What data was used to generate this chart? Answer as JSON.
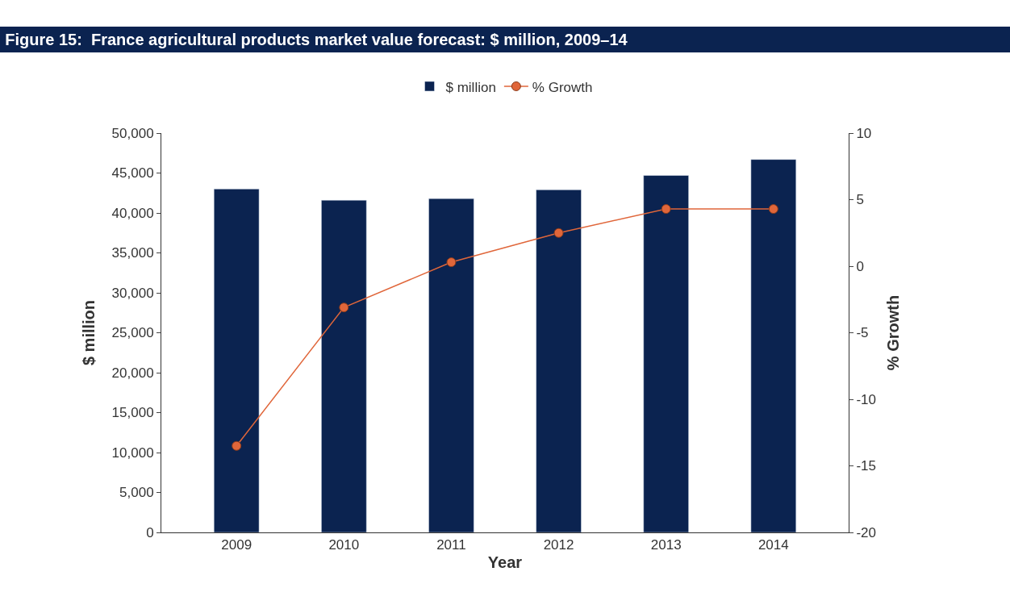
{
  "chart_data": {
    "type": "bar",
    "title": "Figure 15:  France agricultural products market value forecast: $ million, 2009–14",
    "categories": [
      "2009",
      "2010",
      "2011",
      "2012",
      "2013",
      "2014"
    ],
    "series": [
      {
        "name": "$ million",
        "color": "#0b2350",
        "values": [
          43000,
          41600,
          41800,
          42900,
          44700,
          46700
        ]
      },
      {
        "name": "% Growth",
        "type": "line",
        "axis": "y2",
        "color": "#e0663a",
        "marker": "circle",
        "values": [
          -13.5,
          -3.1,
          0.3,
          2.5,
          4.3,
          4.3
        ]
      }
    ],
    "xlabel": "Year",
    "ylabel": "$ million",
    "y2label": "% Growth",
    "ylim": [
      0,
      50000
    ],
    "yticks": [
      {
        "value": 0,
        "label": "0"
      },
      {
        "value": 5000,
        "label": "5,000"
      },
      {
        "value": 10000,
        "label": "10,000"
      },
      {
        "value": 15000,
        "label": "15,000"
      },
      {
        "value": 20000,
        "label": "20,000"
      },
      {
        "value": 25000,
        "label": "25,000"
      },
      {
        "value": 30000,
        "label": "30,000"
      },
      {
        "value": 35000,
        "label": "35,000"
      },
      {
        "value": 40000,
        "label": "40,000"
      },
      {
        "value": 45000,
        "label": "45,000"
      },
      {
        "value": 50000,
        "label": "50,000"
      }
    ],
    "y2lim": [
      -20,
      10
    ],
    "y2ticks": [
      -20,
      -15,
      -10,
      -5,
      0,
      5,
      10
    ],
    "legend": "top"
  }
}
